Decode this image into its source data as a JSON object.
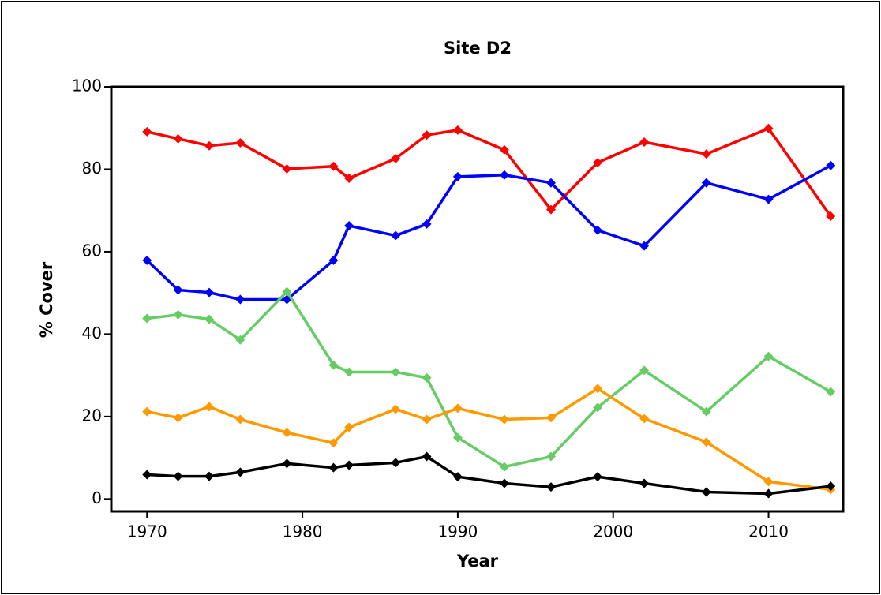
{
  "chart_data": {
    "type": "line",
    "title": "Site D2",
    "x_label": "Year",
    "y_label": "% Cover",
    "x": [
      1970,
      1972,
      1974,
      1976,
      1979,
      1982,
      1983,
      1986,
      1988,
      1990,
      1993,
      1996,
      1999,
      2002,
      2006,
      2010,
      2014
    ],
    "series": [
      {
        "color": "#ff0000",
        "values": [
          89.1,
          87.4,
          85.7,
          86.4,
          80.1,
          80.7,
          77.8,
          82.6,
          88.3,
          89.5,
          84.7,
          70.2,
          81.6,
          86.6,
          83.7,
          89.9,
          68.6
        ]
      },
      {
        "color": "#0000ff",
        "values": [
          57.9,
          50.7,
          50.1,
          48.4,
          48.4,
          57.9,
          66.3,
          63.9,
          66.7,
          78.2,
          78.6,
          76.7,
          65.2,
          61.4,
          76.7,
          72.7,
          80.9
        ]
      },
      {
        "color": "#66cc66",
        "values": [
          43.8,
          44.7,
          43.6,
          38.6,
          50.3,
          32.5,
          30.8,
          30.8,
          29.4,
          14.9,
          7.8,
          10.3,
          22.2,
          31.2,
          21.2,
          34.6,
          26.0
        ]
      },
      {
        "color": "#ff9900",
        "values": [
          21.2,
          19.7,
          22.4,
          19.3,
          16.1,
          13.6,
          17.4,
          21.8,
          19.3,
          22.0,
          19.3,
          19.7,
          26.8,
          19.5,
          13.8,
          4.2,
          2.3
        ]
      },
      {
        "color": "#000000",
        "values": [
          5.9,
          5.5,
          5.5,
          6.5,
          8.6,
          7.6,
          8.2,
          8.8,
          10.3,
          5.4,
          3.8,
          2.9,
          5.4,
          3.8,
          1.7,
          1.3,
          3.1
        ]
      }
    ],
    "xlim": [
      1967.7,
      2014.8
    ],
    "xticks": [
      1970,
      1980,
      1990,
      2000,
      2010
    ],
    "ylim": [
      -3,
      100
    ],
    "yticks": [
      0,
      20,
      40,
      60,
      80,
      100
    ],
    "grid": false
  }
}
